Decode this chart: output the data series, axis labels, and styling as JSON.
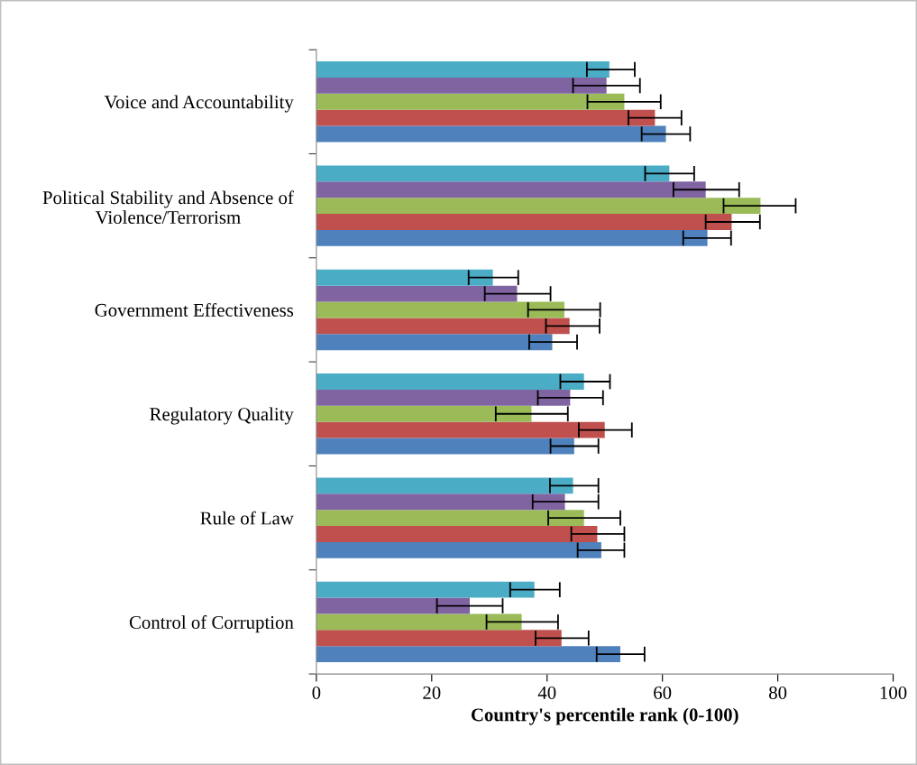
{
  "chart_data": {
    "type": "bar",
    "orientation": "horizontal",
    "xlabel": "Country's percentile rank (0-100)",
    "categories": [
      "Voice and Accountability",
      "Political Stability and Absence of\nViolence/Terrorism",
      "Government Effectiveness",
      "Regulatory Quality",
      "Rule of Law",
      "Control of Corruption"
    ],
    "series": [
      {
        "color": "#4f81bd",
        "values": [
          60.6,
          67.8,
          40.9,
          44.7,
          49.4,
          52.7
        ],
        "errors": [
          [
            56.4,
            64.8
          ],
          [
            63.6,
            71.9
          ],
          [
            36.9,
            45.2
          ],
          [
            40.6,
            48.9
          ],
          [
            45.3,
            53.4
          ],
          [
            48.6,
            56.9
          ]
        ]
      },
      {
        "color": "#c0504d",
        "values": [
          58.7,
          72.0,
          43.9,
          50.0,
          48.7,
          42.5
        ],
        "errors": [
          [
            54.1,
            63.3
          ],
          [
            67.5,
            76.9
          ],
          [
            39.8,
            49.1
          ],
          [
            45.5,
            54.7
          ],
          [
            44.2,
            53.4
          ],
          [
            38.0,
            47.2
          ]
        ]
      },
      {
        "color": "#9bbb59",
        "values": [
          53.4,
          77.0,
          43.0,
          37.3,
          46.4,
          35.6
        ],
        "errors": [
          [
            47.0,
            59.7
          ],
          [
            70.6,
            83.1
          ],
          [
            36.7,
            49.2
          ],
          [
            31.1,
            43.6
          ],
          [
            40.2,
            52.7
          ],
          [
            29.5,
            41.9
          ]
        ]
      },
      {
        "color": "#8064a2",
        "values": [
          50.3,
          67.5,
          34.8,
          44.0,
          43.1,
          26.6
        ],
        "errors": [
          [
            44.5,
            56.1
          ],
          [
            61.9,
            73.3
          ],
          [
            29.2,
            40.6
          ],
          [
            38.4,
            49.7
          ],
          [
            37.5,
            48.9
          ],
          [
            20.9,
            32.3
          ]
        ]
      },
      {
        "color": "#4bacc6",
        "values": [
          50.8,
          61.2,
          30.6,
          46.4,
          44.5,
          37.8
        ],
        "errors": [
          [
            46.9,
            55.2
          ],
          [
            57.0,
            65.5
          ],
          [
            26.4,
            35.0
          ],
          [
            42.3,
            50.9
          ],
          [
            40.5,
            48.9
          ],
          [
            33.6,
            42.2
          ]
        ]
      }
    ],
    "xlim": [
      0,
      100
    ],
    "xticks": [
      0,
      20,
      40,
      60,
      80,
      100
    ],
    "grid": false,
    "legend": false
  }
}
